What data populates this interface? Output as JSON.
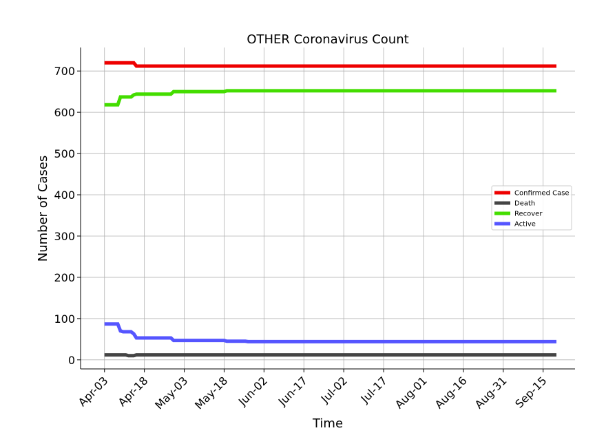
{
  "chart_data": {
    "type": "line",
    "title": "OTHER Coronavirus Count",
    "xlabel": "Time",
    "ylabel": "Number of Cases",
    "x_ticks": [
      "Apr-03",
      "Apr-18",
      "May-03",
      "May-18",
      "Jun-02",
      "Jun-17",
      "Jul-02",
      "Jul-17",
      "Aug-01",
      "Aug-16",
      "Aug-31",
      "Sep-15"
    ],
    "x_range": [
      "2020-03-25",
      "2020-09-27"
    ],
    "ylim": [
      -22,
      757
    ],
    "y_ticks": [
      0,
      100,
      200,
      300,
      400,
      500,
      600,
      700
    ],
    "grid": true,
    "legend_position": "center-right",
    "series": [
      {
        "name": "Confirmed Case",
        "color": "#ee0000",
        "points": [
          [
            "2020-04-03",
            720
          ],
          [
            "2020-04-14",
            720
          ],
          [
            "2020-04-15",
            712
          ],
          [
            "2020-09-20",
            712
          ]
        ]
      },
      {
        "name": "Death",
        "color": "#444444",
        "points": [
          [
            "2020-04-03",
            12
          ],
          [
            "2020-04-11",
            12
          ],
          [
            "2020-04-12",
            10
          ],
          [
            "2020-04-14",
            10
          ],
          [
            "2020-04-15",
            12
          ],
          [
            "2020-09-20",
            12
          ]
        ]
      },
      {
        "name": "Recover",
        "color": "#44dd00",
        "points": [
          [
            "2020-04-03",
            618
          ],
          [
            "2020-04-08",
            618
          ],
          [
            "2020-04-09",
            637
          ],
          [
            "2020-04-13",
            637
          ],
          [
            "2020-04-14",
            642
          ],
          [
            "2020-04-15",
            644
          ],
          [
            "2020-04-28",
            644
          ],
          [
            "2020-04-29",
            650
          ],
          [
            "2020-05-18",
            650
          ],
          [
            "2020-05-19",
            652
          ],
          [
            "2020-09-20",
            652
          ]
        ]
      },
      {
        "name": "Active",
        "color": "#5555ff",
        "points": [
          [
            "2020-04-03",
            87
          ],
          [
            "2020-04-08",
            87
          ],
          [
            "2020-04-09",
            70
          ],
          [
            "2020-04-10",
            68
          ],
          [
            "2020-04-13",
            68
          ],
          [
            "2020-04-14",
            63
          ],
          [
            "2020-04-15",
            53
          ],
          [
            "2020-04-28",
            53
          ],
          [
            "2020-04-29",
            47
          ],
          [
            "2020-05-18",
            47
          ],
          [
            "2020-05-19",
            45
          ],
          [
            "2020-05-26",
            45
          ],
          [
            "2020-05-27",
            44
          ],
          [
            "2020-09-20",
            44
          ]
        ]
      }
    ]
  }
}
